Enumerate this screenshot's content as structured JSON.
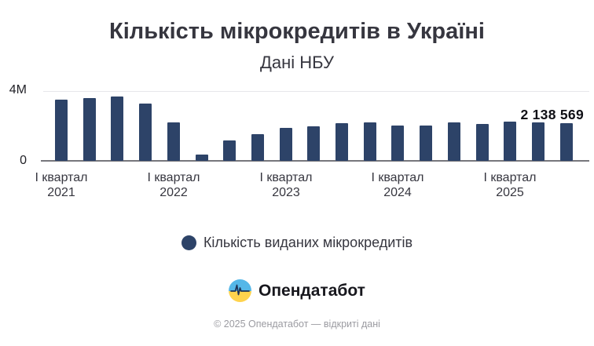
{
  "header": {
    "title": "Кількість мікрокредитів в Україні",
    "subtitle": "Дані НБУ"
  },
  "chart_data": {
    "type": "bar",
    "title": "Кількість мікрокредитів в Україні",
    "subtitle": "Дані НБУ",
    "categories": [
      "2021-Q1",
      "2021-Q2",
      "2021-Q3",
      "2021-Q4",
      "2022-Q1",
      "2022-Q2",
      "2022-Q3",
      "2022-Q4",
      "2023-Q1",
      "2023-Q2",
      "2023-Q3",
      "2023-Q4",
      "2024-Q1",
      "2024-Q2",
      "2024-Q3",
      "2024-Q4",
      "2025-Q1",
      "2025-Q2",
      "2025-Q3"
    ],
    "values": [
      3500000,
      3600000,
      3680000,
      3280000,
      2200000,
      350000,
      1180000,
      1550000,
      1870000,
      1960000,
      2140000,
      2220000,
      2000000,
      2040000,
      2180000,
      2110000,
      2230000,
      2180000,
      2138569
    ],
    "series_name": "Кількість виданих мікрокредитів",
    "bar_color": "#2d4368",
    "ylim": [
      0,
      4000000
    ],
    "grid": "top-gridline-only",
    "y_ticks": [
      {
        "value": 0,
        "label": "0"
      },
      {
        "value": 4000000,
        "label": "4M"
      }
    ],
    "x_tick_labels": [
      {
        "quarter": "І квартал",
        "year": "2021",
        "bar_index": 0
      },
      {
        "quarter": "І квартал",
        "year": "2022",
        "bar_index": 4
      },
      {
        "quarter": "І квартал",
        "year": "2023",
        "bar_index": 8
      },
      {
        "quarter": "І квартал",
        "year": "2024",
        "bar_index": 12
      },
      {
        "quarter": "І квартал",
        "year": "2025",
        "bar_index": 16
      }
    ],
    "last_value_label": "2 138 569",
    "legend": [
      {
        "label": "Кількість виданих мікрокредитів",
        "color": "#2d4368"
      }
    ],
    "legend_position": "bottom-center"
  },
  "branding": {
    "logo_text": "Опендатабот",
    "logo_colors": {
      "blue": "#55b7e8",
      "yellow": "#ffd34d",
      "pulse": "#1d3256"
    }
  },
  "footer": {
    "text": "© 2025 Опендатабот — відкриті дані"
  }
}
